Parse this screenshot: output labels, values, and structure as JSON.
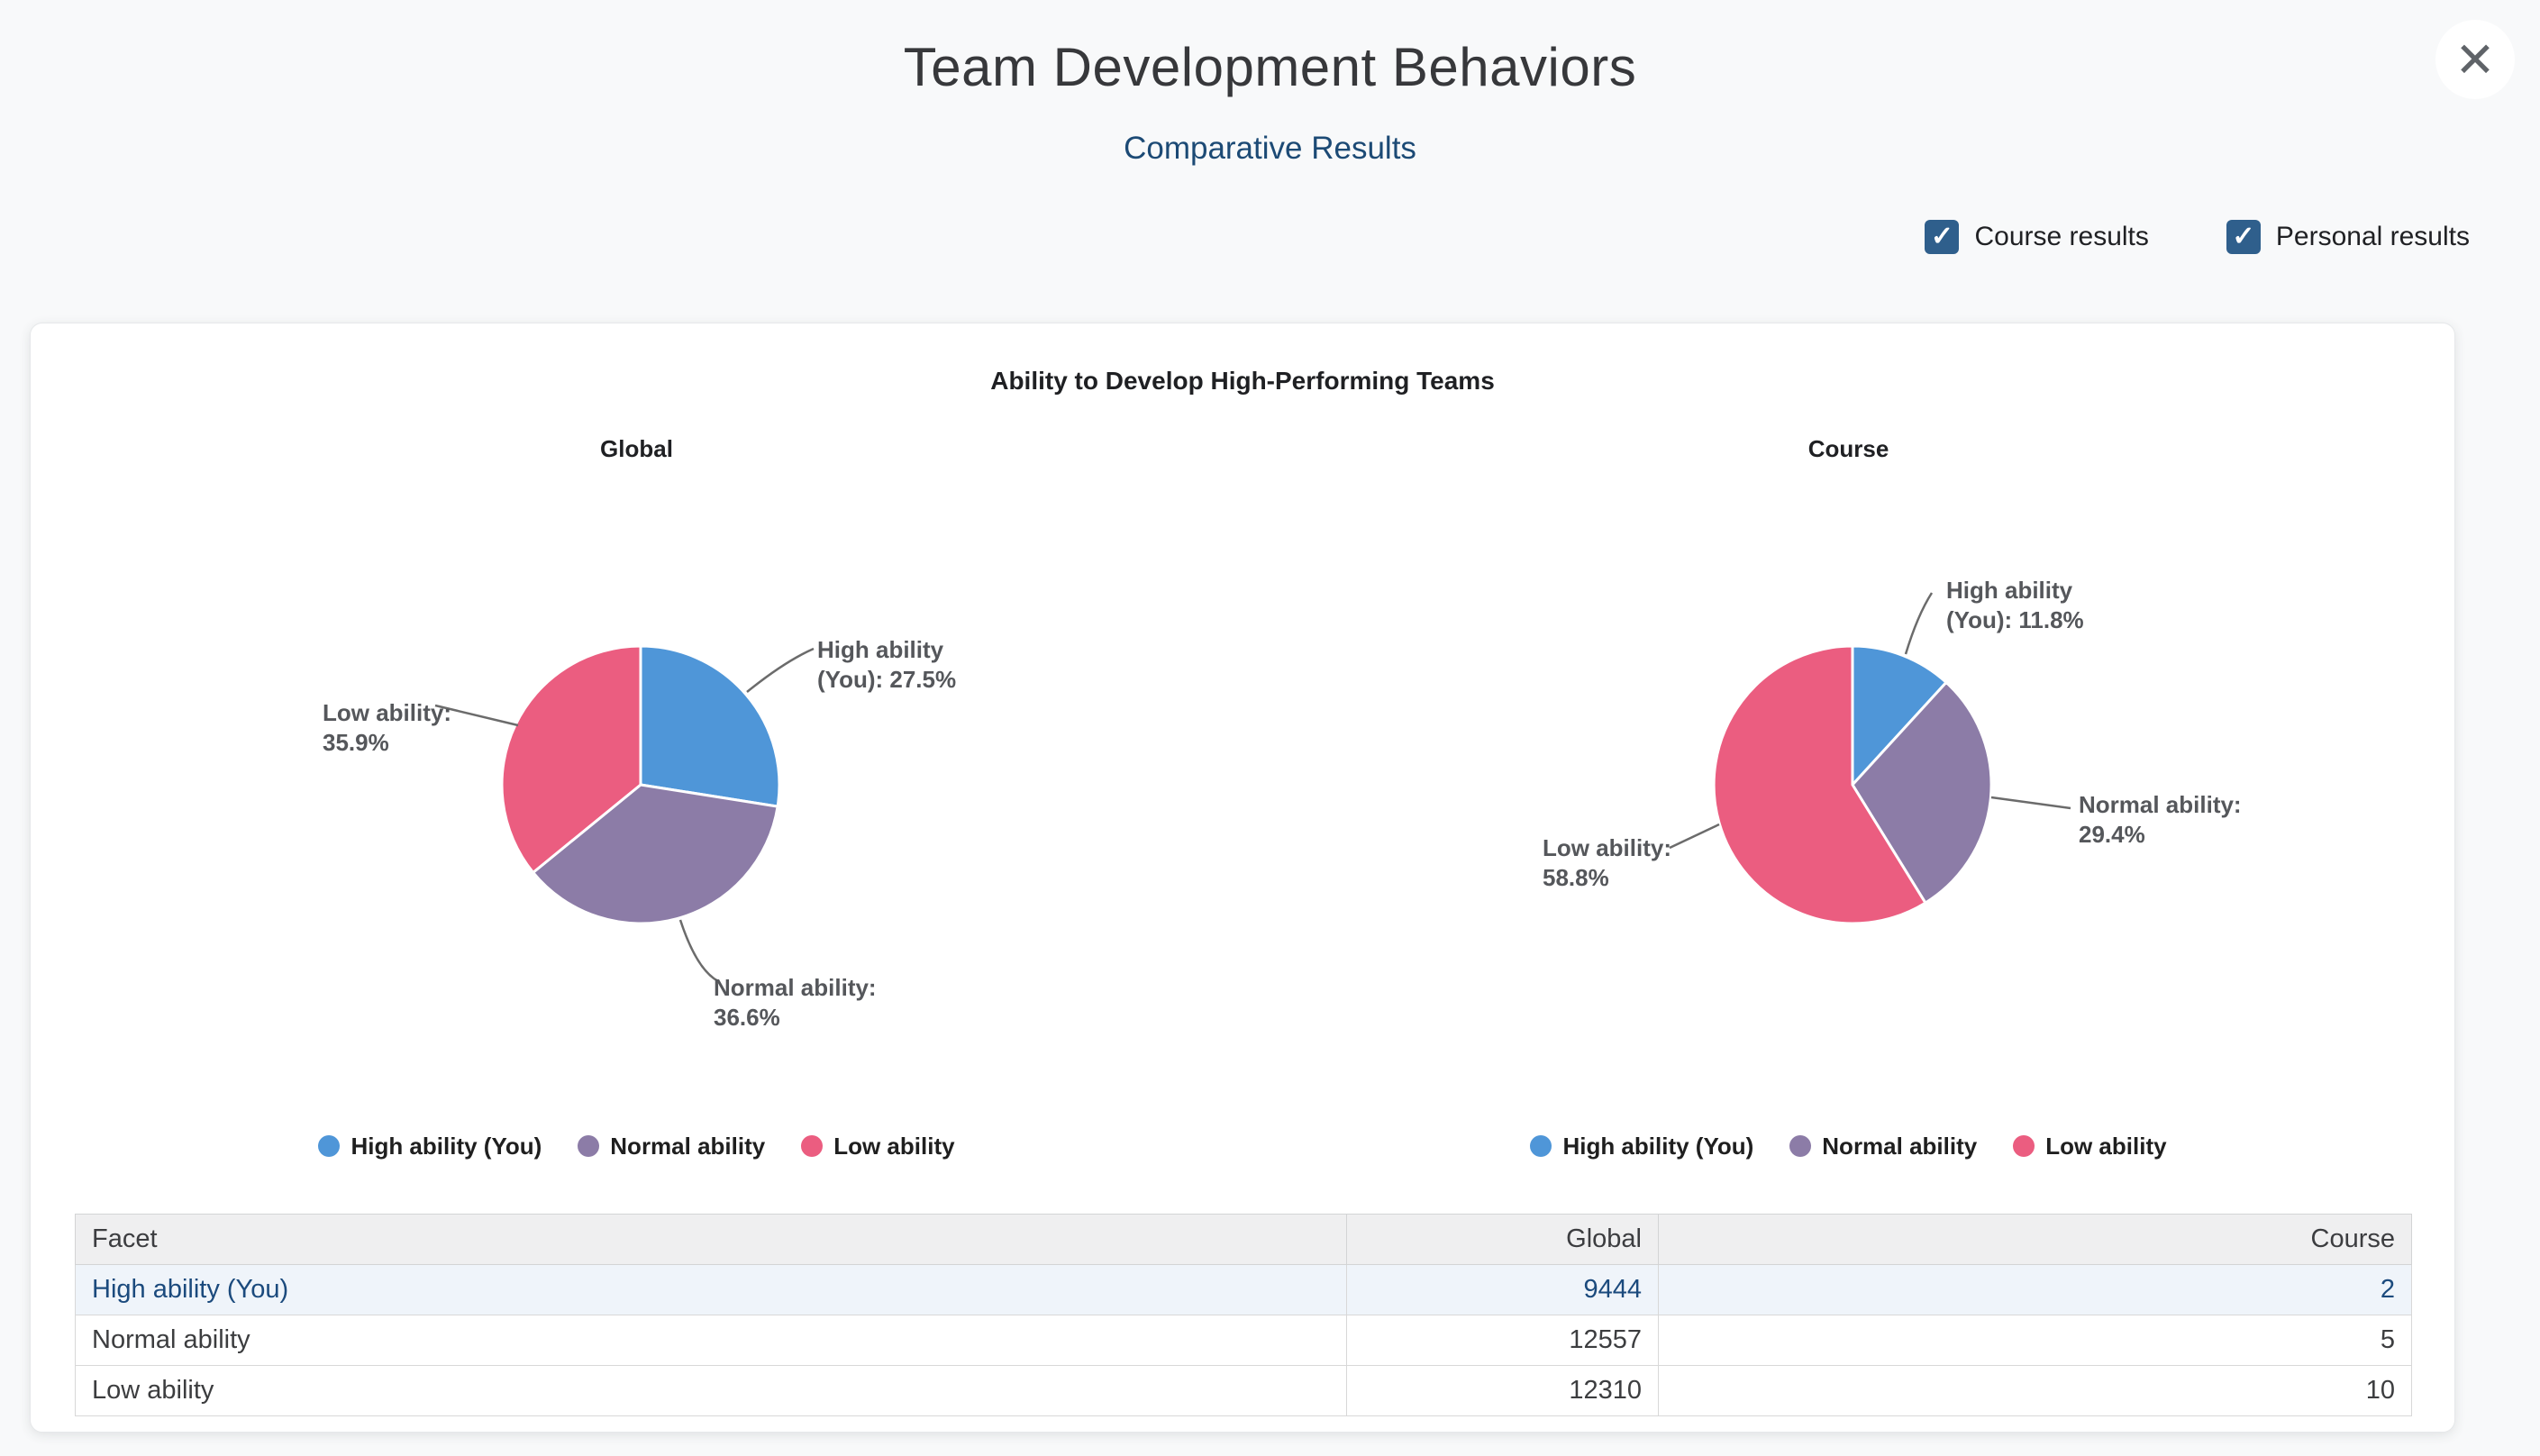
{
  "header": {
    "title": "Team Development Behaviors",
    "subtitle": "Comparative Results",
    "close_glyph": "✕",
    "check_glyph": "✓",
    "checkboxes": [
      {
        "label": "Course results",
        "checked": true
      },
      {
        "label": "Personal results",
        "checked": true
      }
    ]
  },
  "section": {
    "chart_title": "Ability to Develop High-Performing Teams"
  },
  "chart_data": [
    {
      "type": "pie",
      "title": "Global",
      "labels": [
        "High ability (You)",
        "Normal ability",
        "Low ability"
      ],
      "slice_ids": [
        "high-ability-you",
        "normal-ability",
        "low-ability"
      ],
      "values_pct": [
        27.5,
        36.6,
        35.9
      ],
      "values_abs": [
        9444,
        12557,
        12310
      ],
      "colors": [
        "#4f96d8",
        "#8c7ca7",
        "#eb5d80"
      ],
      "legend_position": "bottom",
      "callouts": [
        {
          "for": "high-ability-you",
          "lines": [
            "High ability",
            "(You): 27.5%"
          ]
        },
        {
          "for": "normal-ability",
          "lines": [
            "Normal ability:",
            "36.6%"
          ]
        },
        {
          "for": "low-ability",
          "lines": [
            "Low ability:",
            "35.9%"
          ]
        }
      ]
    },
    {
      "type": "pie",
      "title": "Course",
      "labels": [
        "High ability (You)",
        "Normal ability",
        "Low ability"
      ],
      "slice_ids": [
        "high-ability-you",
        "normal-ability",
        "low-ability"
      ],
      "values_pct": [
        11.8,
        29.4,
        58.8
      ],
      "values_abs": [
        2,
        5,
        10
      ],
      "colors": [
        "#4f96d8",
        "#8c7ca7",
        "#eb5d80"
      ],
      "legend_position": "bottom",
      "callouts": [
        {
          "for": "high-ability-you",
          "lines": [
            "High ability",
            "(You): 11.8%"
          ]
        },
        {
          "for": "normal-ability",
          "lines": [
            "Normal ability:",
            "29.4%"
          ]
        },
        {
          "for": "low-ability",
          "lines": [
            "Low ability:",
            "58.8%"
          ]
        }
      ]
    }
  ],
  "table": {
    "columns": [
      "Facet",
      "Global",
      "Course"
    ],
    "rows": [
      {
        "facet": "High ability (You)",
        "global": "9444",
        "course": "2",
        "highlighted": true
      },
      {
        "facet": "Normal ability",
        "global": "12557",
        "course": "5",
        "highlighted": false
      },
      {
        "facet": "Low ability",
        "global": "12310",
        "course": "10",
        "highlighted": false
      }
    ]
  },
  "colors": {
    "page_bg": "#f8f9fa",
    "card_bg": "#ffffff",
    "subtitle_blue": "#1c4a75",
    "checkbox_blue": "#2f5f8c",
    "pie_blue": "#4f96d8",
    "pie_purple": "#8c7ca7",
    "pie_pink": "#eb5d80",
    "highlight_row_bg": "#eff4fa",
    "callout_text": "#55575b"
  }
}
